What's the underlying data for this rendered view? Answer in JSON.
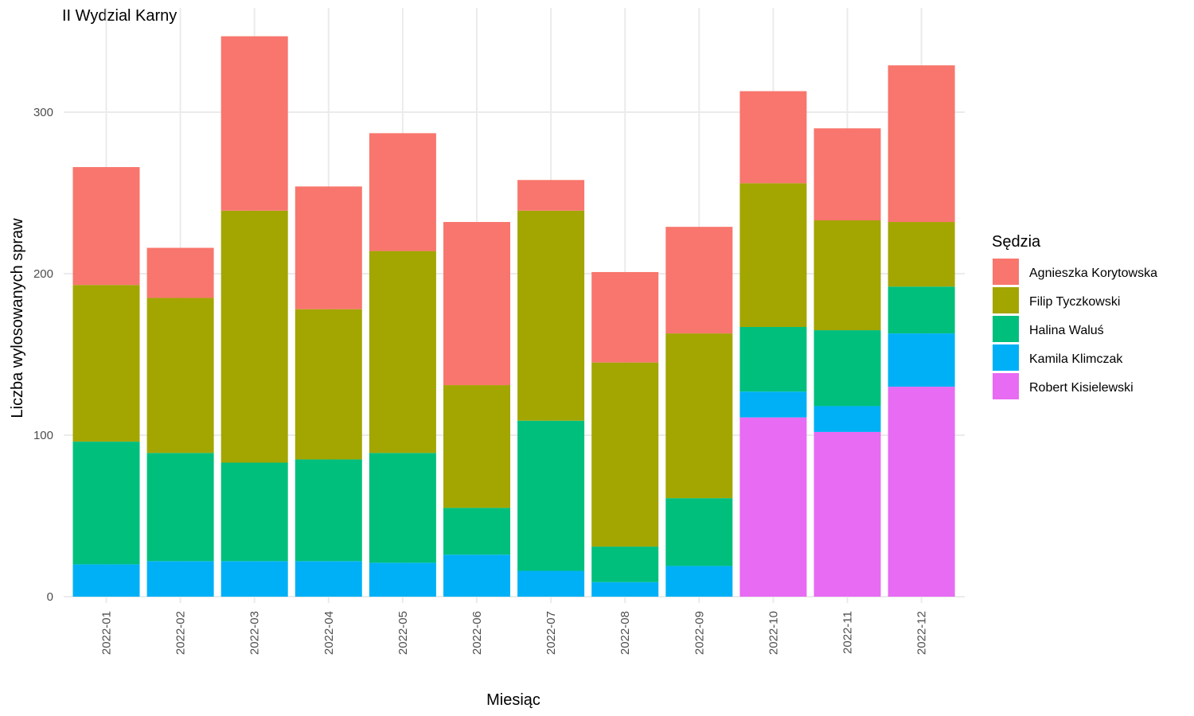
{
  "chart_data": {
    "type": "bar",
    "stacked": true,
    "title": "II Wydzial Karny",
    "xlabel": "Miesiąc",
    "ylabel": "Liczba wylosowanych spraw",
    "ylim": [
      0,
      350
    ],
    "yticks": [
      0,
      100,
      200,
      300
    ],
    "grid": true,
    "legend_title": "Sędzia",
    "legend_position": "right",
    "categories": [
      "2022-01",
      "2022-02",
      "2022-03",
      "2022-04",
      "2022-05",
      "2022-06",
      "2022-07",
      "2022-08",
      "2022-09",
      "2022-10",
      "2022-11",
      "2022-12"
    ],
    "series": [
      {
        "name": "Robert Kisielewski",
        "color": "#E76BF3",
        "values": [
          0,
          0,
          0,
          0,
          0,
          0,
          0,
          0,
          0,
          111,
          102,
          130
        ]
      },
      {
        "name": "Kamila Klimczak",
        "color": "#00B0F6",
        "values": [
          20,
          22,
          22,
          22,
          21,
          26,
          16,
          9,
          19,
          16,
          16,
          33
        ]
      },
      {
        "name": "Halina Waluś",
        "color": "#00BF7D",
        "values": [
          76,
          67,
          61,
          63,
          68,
          29,
          93,
          22,
          42,
          40,
          47,
          29
        ]
      },
      {
        "name": "Filip Tyczkowski",
        "color": "#A3A500",
        "values": [
          97,
          96,
          156,
          93,
          125,
          76,
          130,
          114,
          102,
          89,
          68,
          40
        ]
      },
      {
        "name": "Agnieszka Korytowska",
        "color": "#F8766D",
        "values": [
          73,
          31,
          108,
          76,
          73,
          101,
          19,
          56,
          66,
          57,
          57,
          97
        ]
      }
    ],
    "legend_order": [
      "Agnieszka Korytowska",
      "Filip Tyczkowski",
      "Halina Waluś",
      "Kamila Klimczak",
      "Robert Kisielewski"
    ]
  }
}
